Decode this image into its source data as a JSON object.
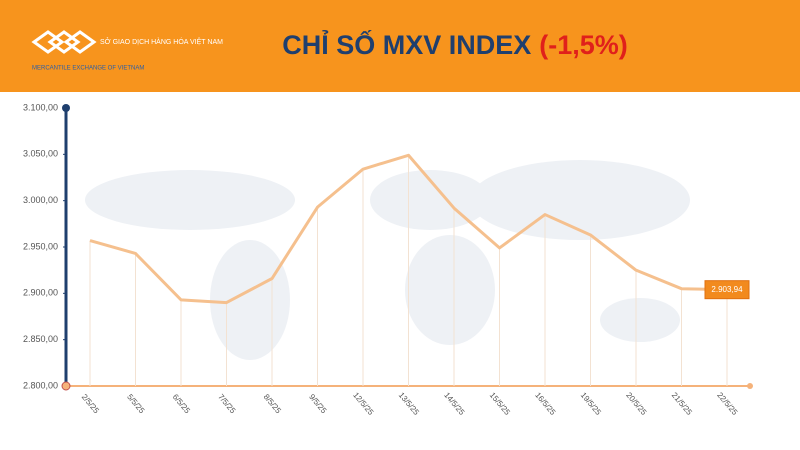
{
  "header": {
    "logo_name": "SỞ GIAO DỊCH HÀNG HÓA VIỆT NAM",
    "logo_tagline": "MERCANTILE EXCHANGE OF VIETNAM"
  },
  "chart_data": {
    "type": "line",
    "title": "CHỈ SỐ MXV INDEX",
    "title_change": "(-1,5%)",
    "categories": [
      "2/5/25",
      "5/5/25",
      "6/5/25",
      "7/5/25",
      "8/5/25",
      "9/5/25",
      "12/5/25",
      "13/5/25",
      "14/5/25",
      "15/5/25",
      "16/5/25",
      "19/5/25",
      "20/5/25",
      "21/5/25",
      "22/5/25"
    ],
    "values": [
      2957,
      2943,
      2893,
      2890,
      2916,
      2993,
      3034,
      3049,
      2992,
      2949,
      2985,
      2963,
      2925,
      2905,
      2903.94
    ],
    "value_labels": [
      null,
      null,
      null,
      null,
      null,
      null,
      null,
      null,
      null,
      null,
      null,
      null,
      null,
      null,
      "2.903,94"
    ],
    "color": "#f5c08e",
    "ylim": [
      2800,
      3100
    ],
    "yticks": [
      {
        "value": 2800,
        "label": "2.800,00"
      },
      {
        "value": 2850,
        "label": "2.850,00"
      },
      {
        "value": 2900,
        "label": "2.900,00"
      },
      {
        "value": 2950,
        "label": "2.950,00"
      },
      {
        "value": 3000,
        "label": "3.000,00"
      },
      {
        "value": 3050,
        "label": "3.050,00"
      },
      {
        "value": 3100,
        "label": "3.100,00"
      }
    ],
    "grid": true
  }
}
